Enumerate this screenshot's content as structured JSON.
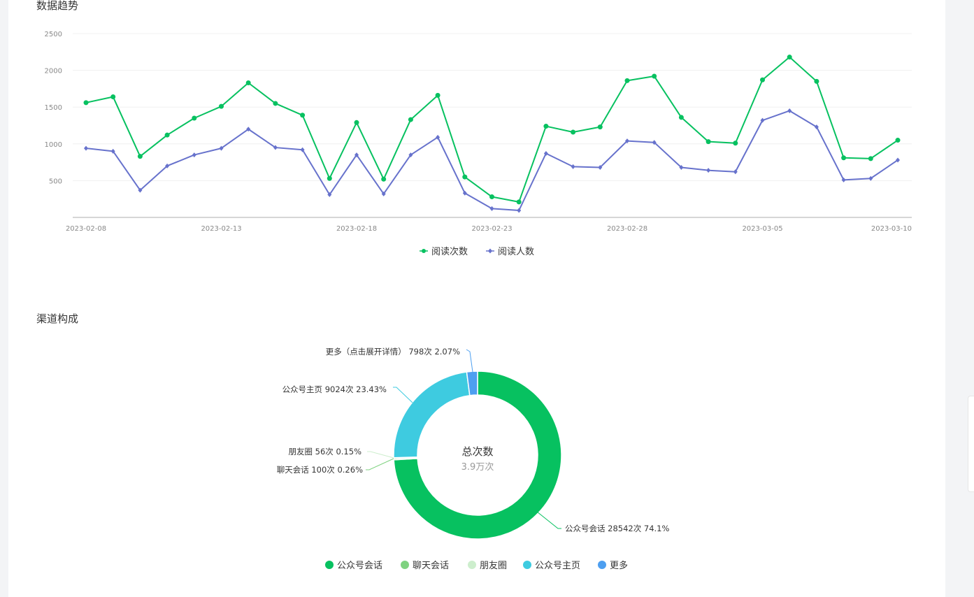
{
  "trend": {
    "title": "数据趋势",
    "chart_data": {
      "type": "line",
      "x": [
        "2023-02-08",
        "2023-02-09",
        "2023-02-10",
        "2023-02-11",
        "2023-02-12",
        "2023-02-13",
        "2023-02-14",
        "2023-02-15",
        "2023-02-16",
        "2023-02-17",
        "2023-02-18",
        "2023-02-19",
        "2023-02-20",
        "2023-02-21",
        "2023-02-22",
        "2023-02-23",
        "2023-02-24",
        "2023-02-25",
        "2023-02-26",
        "2023-02-27",
        "2023-02-28",
        "2023-03-01",
        "2023-03-02",
        "2023-03-03",
        "2023-03-04",
        "2023-03-05",
        "2023-03-06",
        "2023-03-07",
        "2023-03-08",
        "2023-03-09",
        "2023-03-10"
      ],
      "x_ticks": [
        "2023-02-08",
        "2023-02-13",
        "2023-02-18",
        "2023-02-23",
        "2023-02-28",
        "2023-03-05",
        "2023-03-10"
      ],
      "y_ticks": [
        500,
        1000,
        1500,
        2000,
        2500
      ],
      "ylim": [
        0,
        2500
      ],
      "grid": true,
      "legend": "bottom",
      "series": [
        {
          "name": "阅读次数",
          "color": "#07c160",
          "marker": "circle",
          "values": [
            1560,
            1640,
            830,
            1120,
            1350,
            1510,
            1830,
            1550,
            1390,
            530,
            1290,
            520,
            1330,
            1660,
            550,
            280,
            210,
            1240,
            1160,
            1230,
            1860,
            1920,
            1360,
            1030,
            1010,
            1870,
            2180,
            1850,
            810,
            800,
            1050
          ]
        },
        {
          "name": "阅读人数",
          "color": "#6772cc",
          "marker": "diamond",
          "values": [
            940,
            900,
            370,
            700,
            850,
            940,
            1200,
            950,
            920,
            310,
            850,
            320,
            850,
            1090,
            330,
            120,
            95,
            870,
            690,
            680,
            1040,
            1020,
            680,
            640,
            620,
            1320,
            1450,
            1230,
            510,
            530,
            780
          ]
        }
      ]
    }
  },
  "channels": {
    "title": "渠道构成",
    "center_title": "总次数",
    "center_value": "3.9万次",
    "chart_data": {
      "type": "pie",
      "donut": true,
      "legend": "bottom",
      "slices": [
        {
          "name": "公众号会话",
          "value": 28542,
          "percent": 74.1,
          "color": "#07c160",
          "label": "公众号会话 28542次 74.1%"
        },
        {
          "name": "聊天会话",
          "value": 100,
          "percent": 0.26,
          "color": "#7fd280",
          "label": "聊天会话 100次 0.26%"
        },
        {
          "name": "朋友圈",
          "value": 56,
          "percent": 0.15,
          "color": "#cdeecd",
          "label": "朋友圈 56次 0.15%"
        },
        {
          "name": "公众号主页",
          "value": 9024,
          "percent": 23.43,
          "color": "#3ecbe0",
          "label": "公众号主页 9024次 23.43%"
        },
        {
          "name": "更多",
          "value": 798,
          "percent": 2.07,
          "color": "#4d9ff0",
          "label": "更多（点击展开详情） 798次 2.07%"
        }
      ]
    }
  }
}
